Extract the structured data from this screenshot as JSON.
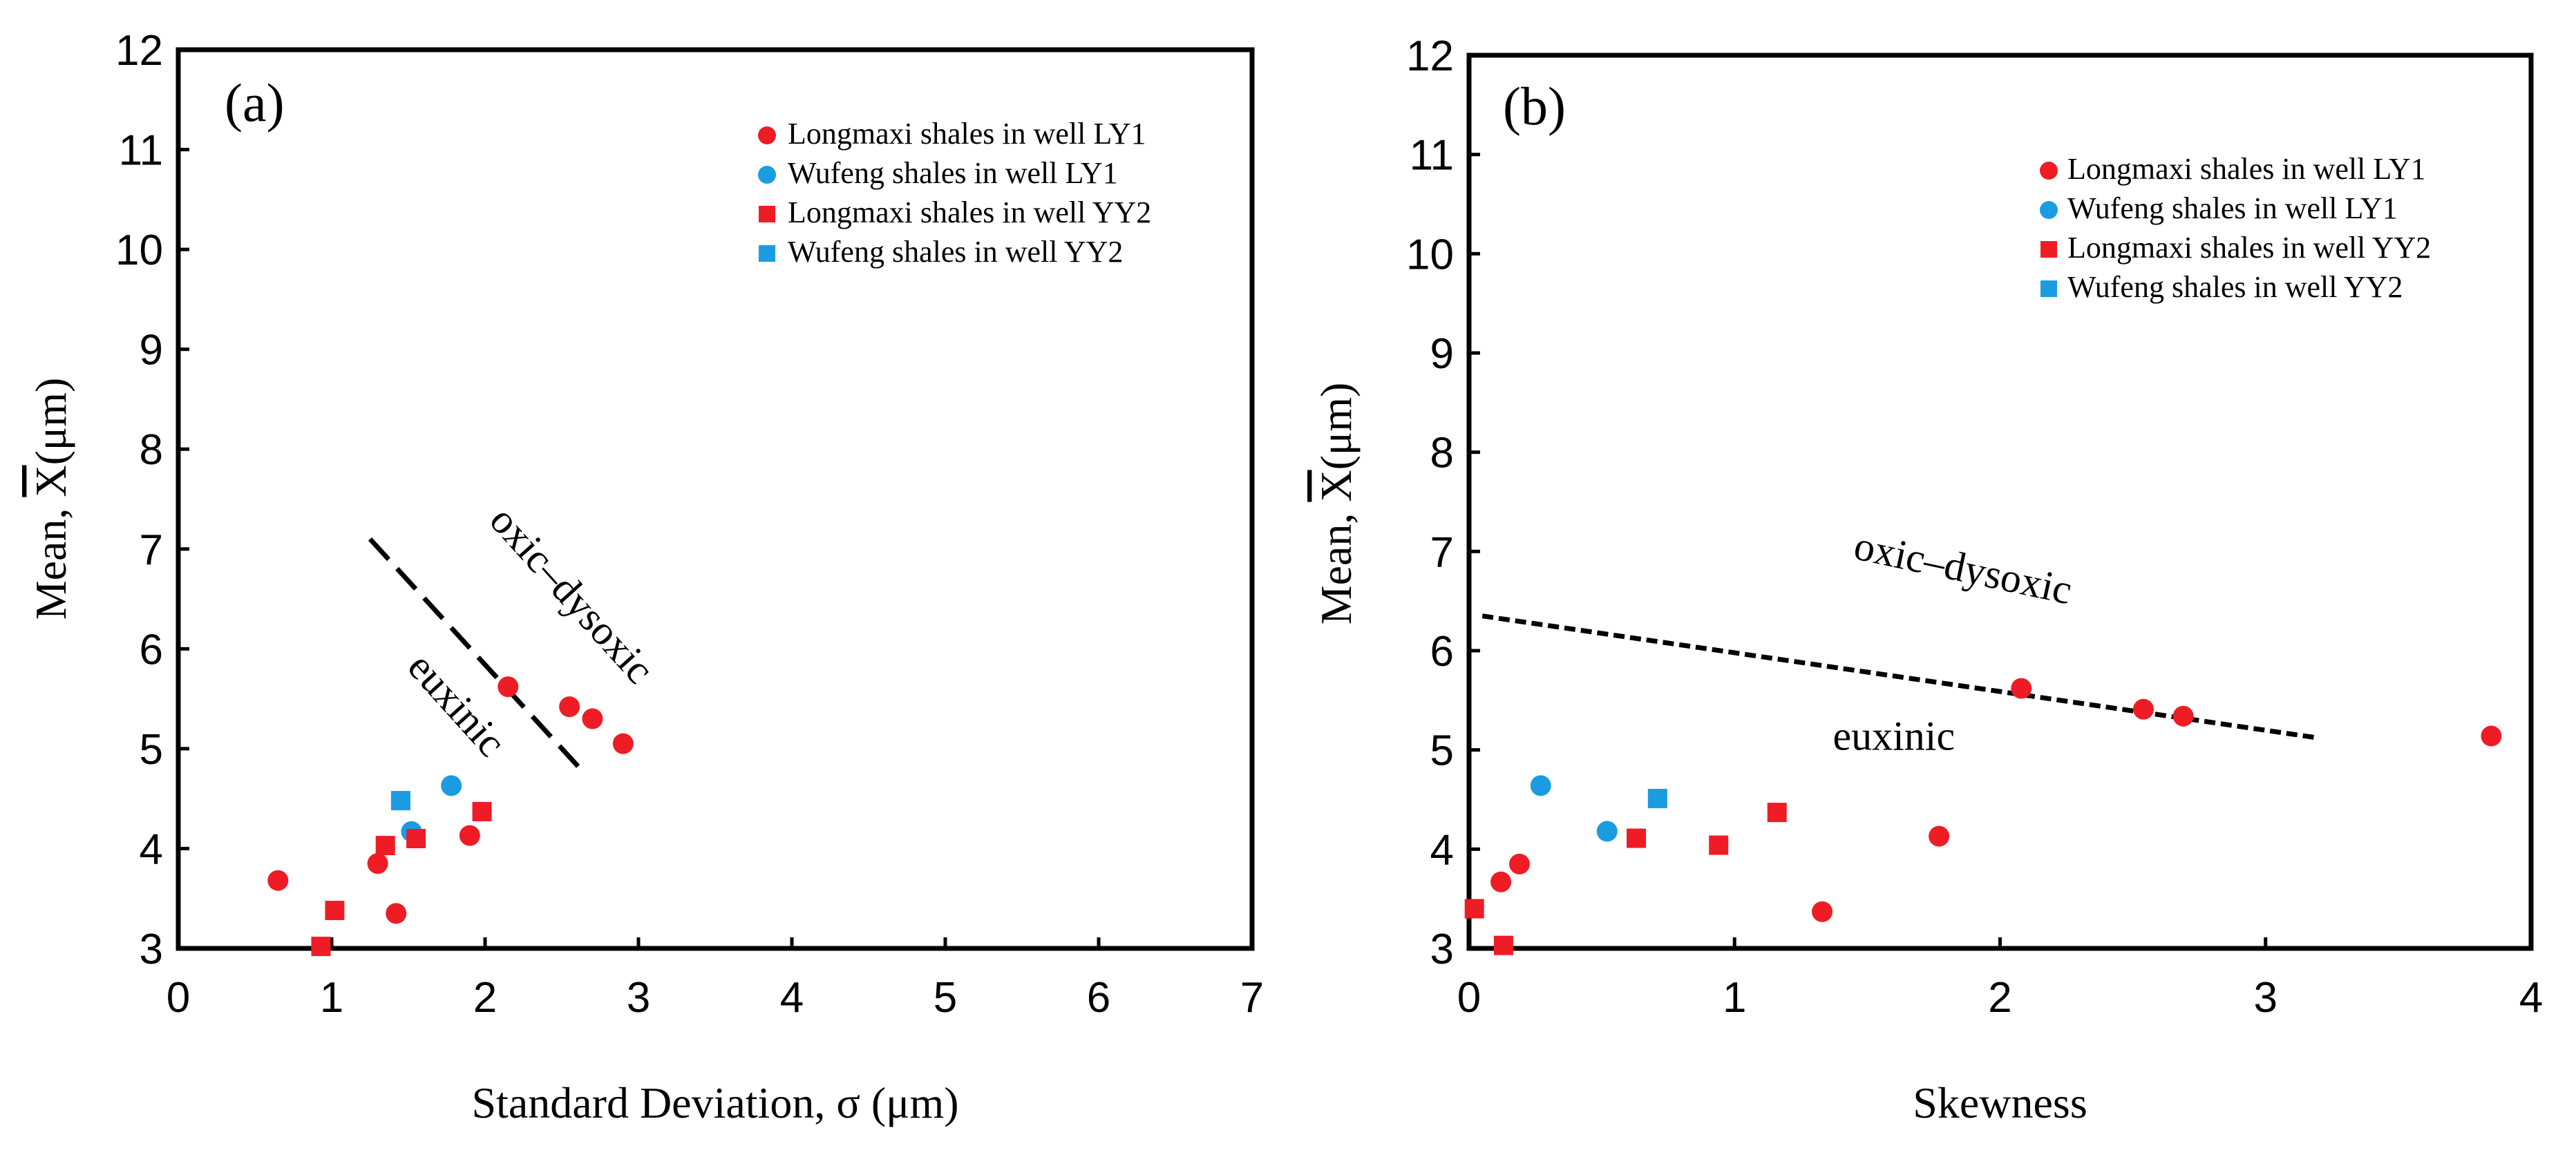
{
  "colors": {
    "red": "#ee1c25",
    "blue": "#1b9ce0",
    "axis": "#000000"
  },
  "legend": [
    "Longmaxi shales in well LY1",
    "Wufeng shales in well LY1",
    "Longmaxi shales in well YY2",
    "Wufeng shales in well YY2"
  ],
  "chart_data": [
    {
      "type": "scatter",
      "panel_label": "(a)",
      "xlabel": "Standard Deviation, σ (μm)",
      "ylabel": "Mean, X(μm)",
      "ylabel_prefix": "Mean, ",
      "ylabel_symbol": "X",
      "ylabel_suffix": "(μm)",
      "xlim": [
        0,
        7
      ],
      "ylim": [
        3,
        12
      ],
      "xticks": [
        0,
        1,
        2,
        3,
        4,
        5,
        6,
        7
      ],
      "yticks": [
        3,
        4,
        5,
        6,
        7,
        8,
        9,
        10,
        11,
        12
      ],
      "legend_position": "top-right",
      "series": [
        {
          "name": "Longmaxi shales in well LY1",
          "marker": "circle",
          "color": "#ee1c25",
          "points": [
            [
              0.65,
              3.68
            ],
            [
              1.3,
              3.85
            ],
            [
              1.42,
              3.35
            ],
            [
              1.9,
              4.13
            ],
            [
              2.15,
              5.62
            ],
            [
              2.55,
              5.42
            ],
            [
              2.7,
              5.3
            ],
            [
              2.9,
              5.05
            ]
          ]
        },
        {
          "name": "Wufeng shales in well LY1",
          "marker": "circle",
          "color": "#1b9ce0",
          "points": [
            [
              1.52,
              4.17
            ],
            [
              1.78,
              4.63
            ]
          ]
        },
        {
          "name": "Longmaxi shales in well YY2",
          "marker": "square",
          "color": "#ee1c25",
          "points": [
            [
              0.93,
              3.02
            ],
            [
              1.02,
              3.38
            ],
            [
              1.35,
              4.03
            ],
            [
              1.55,
              4.1
            ],
            [
              1.98,
              4.37
            ]
          ]
        },
        {
          "name": "Wufeng shales in well YY2",
          "marker": "square",
          "color": "#1b9ce0",
          "points": [
            [
              1.45,
              4.48
            ]
          ]
        }
      ],
      "boundary": {
        "style": "long-dash",
        "from": [
          1.25,
          7.1
        ],
        "to": [
          2.65,
          4.75
        ]
      },
      "regions": [
        {
          "label": "oxic–dysoxic",
          "at": [
            2.5,
            6.45
          ],
          "angle": 48
        },
        {
          "label": "euxinic",
          "at": [
            1.75,
            5.35
          ],
          "angle": 48
        }
      ]
    },
    {
      "type": "scatter",
      "panel_label": "(b)",
      "xlabel": "Skewness",
      "ylabel": "Mean, X(μm)",
      "ylabel_prefix": "Mean, ",
      "ylabel_symbol": "X",
      "ylabel_suffix": "(μm)",
      "xlim": [
        0,
        4
      ],
      "ylim": [
        3,
        12
      ],
      "xticks": [
        0,
        1,
        2,
        3,
        4
      ],
      "yticks": [
        3,
        4,
        5,
        6,
        7,
        8,
        9,
        10,
        11,
        12
      ],
      "legend_position": "top-right",
      "series": [
        {
          "name": "Longmaxi shales in well LY1",
          "marker": "circle",
          "color": "#ee1c25",
          "points": [
            [
              0.12,
              3.67
            ],
            [
              0.19,
              3.85
            ],
            [
              1.33,
              3.37
            ],
            [
              1.77,
              4.13
            ],
            [
              2.08,
              5.62
            ],
            [
              2.54,
              5.41
            ],
            [
              2.69,
              5.34
            ],
            [
              3.85,
              5.14
            ]
          ]
        },
        {
          "name": "Wufeng shales in well LY1",
          "marker": "circle",
          "color": "#1b9ce0",
          "points": [
            [
              0.27,
              4.64
            ],
            [
              0.52,
              4.18
            ]
          ]
        },
        {
          "name": "Longmaxi shales in well YY2",
          "marker": "square",
          "color": "#ee1c25",
          "points": [
            [
              0.02,
              3.4
            ],
            [
              0.13,
              3.03
            ],
            [
              0.63,
              4.11
            ],
            [
              0.94,
              4.04
            ],
            [
              1.16,
              4.37
            ]
          ]
        },
        {
          "name": "Wufeng shales in well YY2",
          "marker": "square",
          "color": "#1b9ce0",
          "points": [
            [
              0.71,
              4.51
            ]
          ]
        }
      ],
      "boundary": {
        "style": "short-dash",
        "from": [
          0.05,
          6.35
        ],
        "to": [
          3.2,
          5.12
        ]
      },
      "regions": [
        {
          "label": "oxic–dysoxic",
          "at": [
            1.85,
            6.7
          ],
          "angle": 12
        },
        {
          "label": "euxinic",
          "at": [
            1.6,
            5.0
          ],
          "angle": 0
        }
      ]
    }
  ]
}
